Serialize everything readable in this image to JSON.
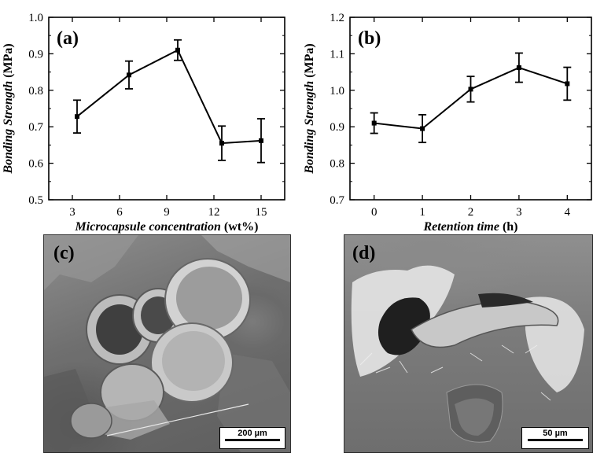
{
  "chart_data": [
    {
      "type": "line",
      "panel_label": "(a)",
      "xlabel": "Microcapsule concentration (wt%)",
      "ylabel": "Bonding Strength (MPa)",
      "x": [
        3.3,
        6.6,
        9.7,
        12.5,
        15
      ],
      "y": [
        0.728,
        0.842,
        0.91,
        0.655,
        0.662
      ],
      "yerr": [
        0.045,
        0.038,
        0.028,
        0.047,
        0.06
      ],
      "xlim": [
        1.5,
        16.5
      ],
      "ylim": [
        0.5,
        1.0
      ],
      "xticks": [
        "3",
        "6",
        "9",
        "12",
        "15"
      ],
      "yticks": [
        "0.5",
        "0.6",
        "0.7",
        "0.8",
        "0.9",
        "1.0"
      ]
    },
    {
      "type": "line",
      "panel_label": "(b)",
      "xlabel": "Retention time (h)",
      "ylabel": "Bonding Strength (MPa)",
      "x": [
        0,
        1,
        2,
        3,
        4
      ],
      "y": [
        0.91,
        0.895,
        1.003,
        1.062,
        1.018
      ],
      "yerr": [
        0.028,
        0.038,
        0.035,
        0.04,
        0.045
      ],
      "xlim": [
        -0.5,
        4.5
      ],
      "ylim": [
        0.7,
        1.2
      ],
      "xticks": [
        "0",
        "1",
        "2",
        "3",
        "4"
      ],
      "yticks": [
        "0.7",
        "0.8",
        "0.9",
        "1.0",
        "1.1",
        "1.2"
      ]
    }
  ],
  "images": [
    {
      "panel_label": "(c)",
      "scale_label": "200 µm"
    },
    {
      "panel_label": "(d)",
      "scale_label": "50 µm"
    }
  ]
}
